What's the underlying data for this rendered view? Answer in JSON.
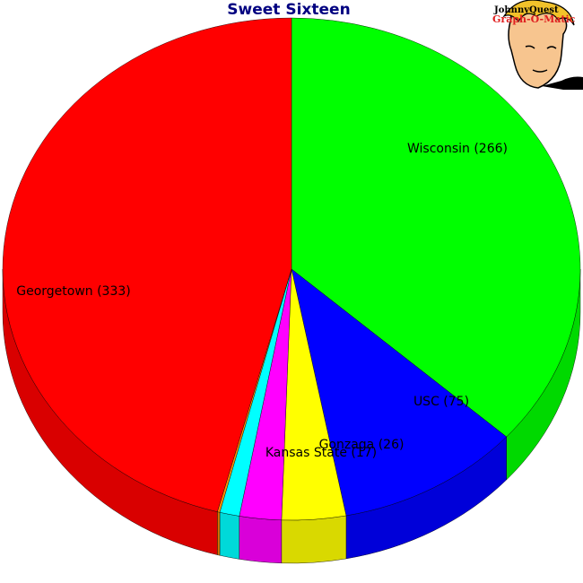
{
  "chart_data": {
    "type": "pie",
    "title": "Sweet Sixteen",
    "label_format": "{name} ({value})",
    "slices": [
      {
        "name": "Wisconsin",
        "value": 266,
        "color": "#00ff00"
      },
      {
        "name": "USC",
        "value": 75,
        "color": "#0000ff"
      },
      {
        "name": "Gonzaga",
        "value": 26,
        "color": "#ffff00"
      },
      {
        "name": "Kansas State",
        "value": 17,
        "color": "#ff00ff"
      },
      {
        "name": "",
        "value": 8,
        "color": "#00ffff"
      },
      {
        "name": "",
        "value": 1,
        "color": "#ff8c00"
      },
      {
        "name": "Georgetown",
        "value": 333,
        "color": "#ff0000"
      }
    ],
    "style": "3d"
  },
  "logo": {
    "line1": "JohnnyQuest",
    "line2": "Graph-O-Matic",
    "icon": "cartoon-boy-face-icon"
  }
}
